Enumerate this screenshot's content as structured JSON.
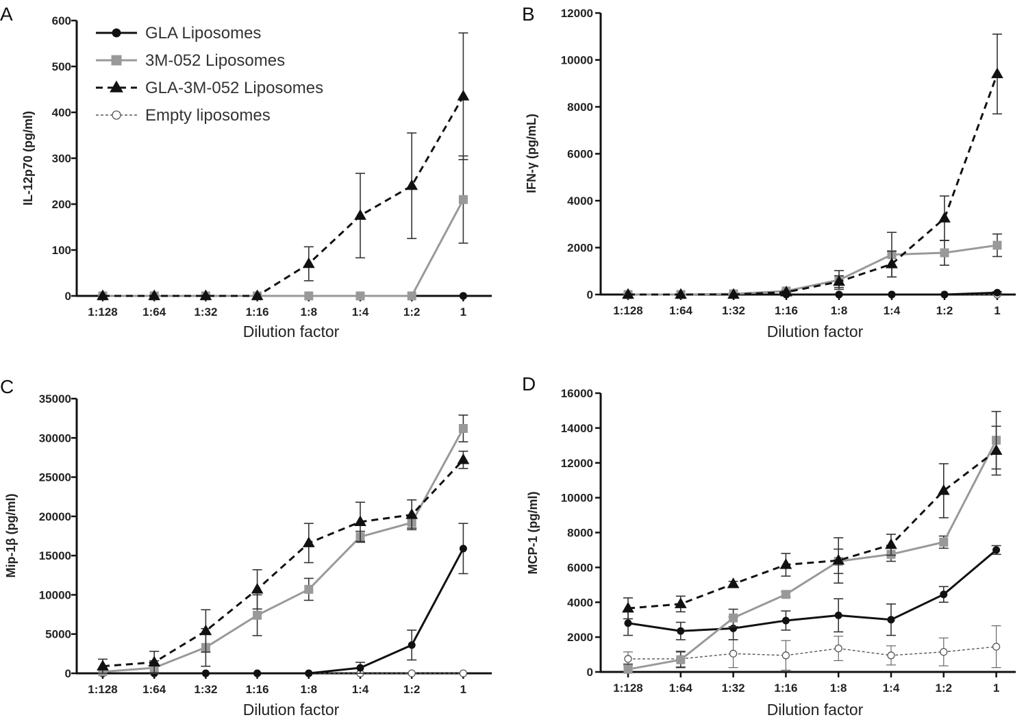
{
  "chart_data": [
    {
      "type": "line",
      "panel": "A",
      "xlabel": "Dilution factor",
      "ylabel": "IL-12p70 (pg/ml)",
      "categories": [
        "1:128",
        "1:64",
        "1:32",
        "1:16",
        "1:8",
        "1:4",
        "1:2",
        "1"
      ],
      "ylim": [
        0,
        600
      ],
      "yticks": [
        0,
        100,
        200,
        300,
        400,
        500,
        600
      ],
      "series": [
        {
          "name": "GLA Liposomes",
          "values": [
            0,
            0,
            0,
            0,
            0,
            0,
            0,
            0
          ],
          "errors": [
            0,
            0,
            0,
            0,
            0,
            0,
            0,
            0
          ]
        },
        {
          "name": "3M-052 Liposomes",
          "values": [
            0,
            0,
            0,
            0,
            0,
            0,
            0,
            210
          ],
          "errors": [
            0,
            0,
            0,
            0,
            0,
            0,
            0,
            95
          ]
        },
        {
          "name": "GLA-3M-052 Liposomes",
          "values": [
            0,
            0,
            0,
            0,
            70,
            175,
            240,
            435
          ],
          "errors": [
            0,
            0,
            0,
            0,
            37,
            92,
            115,
            138
          ]
        },
        {
          "name": "Empty liposomes",
          "values": [
            0,
            0,
            0,
            0,
            0,
            0,
            0,
            0
          ],
          "errors": [
            0,
            0,
            0,
            0,
            0,
            0,
            0,
            0
          ]
        }
      ]
    },
    {
      "type": "line",
      "panel": "B",
      "xlabel": "Dilution factor",
      "ylabel": "IFN-γ (pg/mL)",
      "categories": [
        "1:128",
        "1:64",
        "1:32",
        "1:16",
        "1:8",
        "1:4",
        "1:2",
        "1"
      ],
      "ylim": [
        0,
        12000
      ],
      "yticks": [
        0,
        2000,
        4000,
        6000,
        8000,
        10000,
        12000
      ],
      "series": [
        {
          "name": "GLA Liposomes",
          "values": [
            0,
            0,
            0,
            0,
            0,
            0,
            0,
            80
          ],
          "errors": [
            0,
            0,
            0,
            0,
            0,
            0,
            0,
            40
          ]
        },
        {
          "name": "3M-052 Liposomes",
          "values": [
            0,
            0,
            30,
            150,
            620,
            1700,
            1780,
            2100
          ],
          "errors": [
            0,
            0,
            20,
            60,
            400,
            950,
            530,
            480
          ]
        },
        {
          "name": "GLA-3M-052 Liposomes",
          "values": [
            0,
            0,
            0,
            100,
            550,
            1300,
            3250,
            9400
          ],
          "errors": [
            0,
            0,
            0,
            50,
            250,
            550,
            950,
            1700
          ]
        },
        {
          "name": "Empty liposomes",
          "values": [
            0,
            0,
            0,
            0,
            0,
            0,
            0,
            0
          ],
          "errors": [
            0,
            0,
            0,
            0,
            0,
            0,
            0,
            0
          ]
        }
      ]
    },
    {
      "type": "line",
      "panel": "C",
      "xlabel": "Dilution factor",
      "ylabel": "Mip-1β (pg/ml)",
      "categories": [
        "1:128",
        "1:64",
        "1:32",
        "1:16",
        "1:8",
        "1:4",
        "1:2",
        "1"
      ],
      "ylim": [
        0,
        35000
      ],
      "yticks": [
        0,
        5000,
        10000,
        15000,
        20000,
        25000,
        30000,
        35000
      ],
      "series": [
        {
          "name": "GLA Liposomes",
          "values": [
            0,
            0,
            0,
            0,
            0,
            700,
            3600,
            15900
          ],
          "errors": [
            0,
            0,
            0,
            0,
            0,
            700,
            1900,
            3200
          ]
        },
        {
          "name": "3M-052 Liposomes",
          "values": [
            200,
            700,
            3300,
            7400,
            10700,
            17400,
            19200,
            31200
          ],
          "errors": [
            300,
            900,
            2400,
            2600,
            1400,
            700,
            700,
            1700
          ]
        },
        {
          "name": "GLA-3M-052 Liposomes",
          "values": [
            900,
            1400,
            5400,
            10700,
            16600,
            19300,
            20200,
            27200
          ],
          "errors": [
            900,
            1400,
            2700,
            2500,
            2500,
            2500,
            1900,
            1100
          ]
        },
        {
          "name": "Empty liposomes",
          "values": [
            0,
            0,
            0,
            0,
            0,
            0,
            0,
            0
          ],
          "errors": [
            0,
            0,
            0,
            0,
            0,
            0,
            0,
            0
          ]
        }
      ]
    },
    {
      "type": "line",
      "panel": "D",
      "xlabel": "Dilution factor",
      "ylabel": "MCP-1 (pg/ml)",
      "categories": [
        "1:128",
        "1:64",
        "1:32",
        "1:16",
        "1:8",
        "1:4",
        "1:2",
        "1"
      ],
      "ylim": [
        0,
        16000
      ],
      "yticks": [
        0,
        2000,
        4000,
        6000,
        8000,
        10000,
        12000,
        14000,
        16000
      ],
      "series": [
        {
          "name": "GLA Liposomes",
          "values": [
            2800,
            2350,
            2500,
            2950,
            3250,
            3000,
            4450,
            7000
          ],
          "errors": [
            700,
            500,
            650,
            550,
            950,
            900,
            450,
            250
          ]
        },
        {
          "name": "3M-052 Liposomes",
          "values": [
            150,
            700,
            3100,
            4450,
            6350,
            6750,
            7450,
            13300
          ],
          "errors": [
            300,
            450,
            500,
            150,
            700,
            400,
            350,
            1650
          ]
        },
        {
          "name": "GLA-3M-052 Liposomes",
          "values": [
            3650,
            3900,
            5050,
            6150,
            6400,
            7300,
            10400,
            12700
          ],
          "errors": [
            600,
            450,
            150,
            650,
            1300,
            600,
            1550,
            1400
          ]
        },
        {
          "name": "Empty liposomes",
          "values": [
            750,
            750,
            1050,
            950,
            1350,
            950,
            1150,
            1450
          ],
          "errors": [
            400,
            450,
            800,
            850,
            700,
            550,
            800,
            1200
          ]
        }
      ]
    }
  ],
  "legend": {
    "entries": [
      "GLA Liposomes",
      "3M-052 Liposomes",
      "GLA-3M-052 Liposomes",
      "Empty liposomes"
    ]
  },
  "colors": {
    "gla": "#111111",
    "m052": "#999999",
    "combo": "#111111",
    "empty": "#555555",
    "axis": "#111111"
  }
}
